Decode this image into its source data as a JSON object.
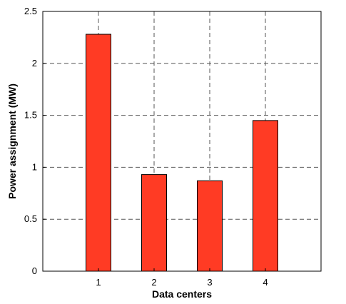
{
  "chart_data": {
    "type": "bar",
    "categories": [
      "1",
      "2",
      "3",
      "4"
    ],
    "values": [
      2.28,
      0.93,
      0.87,
      1.45
    ],
    "xlabel": "Data centers",
    "ylabel": "Power assignment (MW)",
    "ylim": [
      0,
      2.5
    ],
    "yticks": [
      "0",
      "0.5",
      "1",
      "1.5",
      "2",
      "2.5"
    ],
    "grid": true,
    "bar_color": "#ff3b24"
  }
}
